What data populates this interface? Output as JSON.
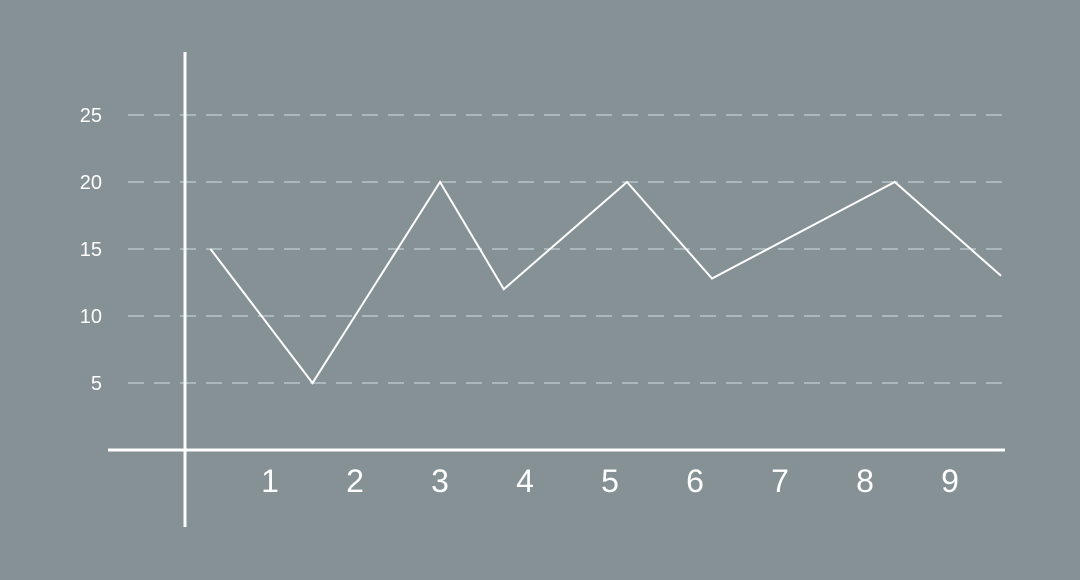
{
  "colors": {
    "background": "#869195",
    "line": "#ffffff",
    "axis": "#ffffff",
    "grid": "#b6c6cc"
  },
  "chart_data": {
    "type": "line",
    "title": "",
    "xlabel": "",
    "ylabel": "",
    "x_tick_labels": [
      "1",
      "2",
      "3",
      "4",
      "5",
      "6",
      "7",
      "8",
      "9"
    ],
    "y_tick_labels": [
      "5",
      "10",
      "15",
      "20",
      "25"
    ],
    "y_ticks": [
      5,
      10,
      15,
      20,
      25
    ],
    "ylim": [
      0,
      25
    ],
    "grid": "horizontal dashed",
    "legend": "none",
    "series": [
      {
        "x": [
          0.3,
          1.5,
          3.0,
          3.75,
          5.2,
          6.2,
          8.35,
          9.6
        ],
        "values": [
          15,
          5,
          20,
          12,
          20,
          12.8,
          20,
          13
        ]
      }
    ]
  }
}
